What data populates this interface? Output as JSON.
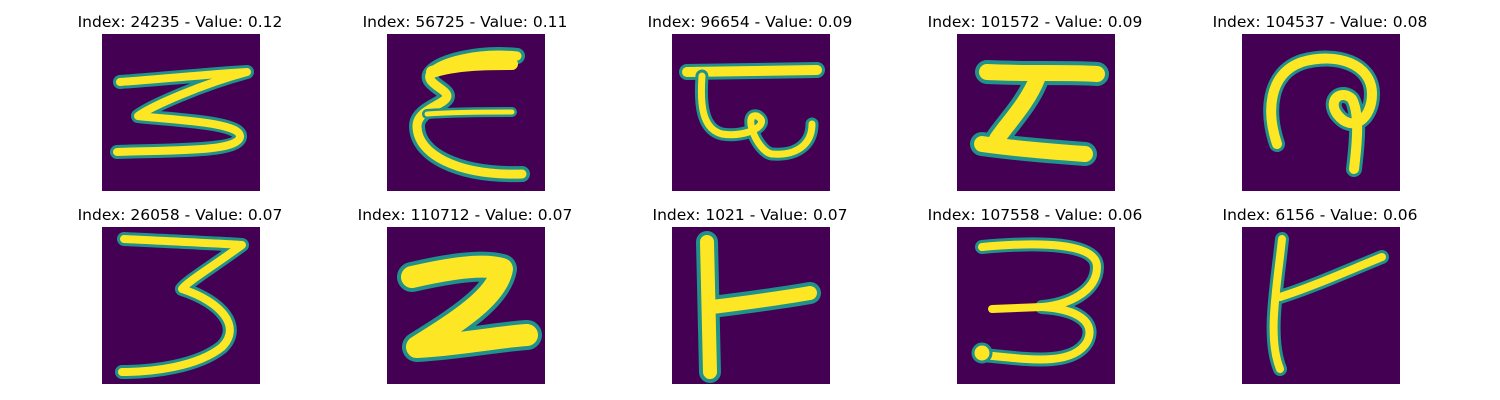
{
  "figure": {
    "colors": {
      "background": "#440154",
      "stroke": "#fde725",
      "edge": "#21918c"
    },
    "panels": [
      {
        "title": "Index: 24235 - Value: 0.12"
      },
      {
        "title": "Index: 56725 - Value: 0.11"
      },
      {
        "title": "Index: 96654 - Value: 0.09"
      },
      {
        "title": "Index: 101572 - Value: 0.09"
      },
      {
        "title": "Index: 104537 - Value: 0.08"
      },
      {
        "title": "Index: 26058 - Value: 0.07"
      },
      {
        "title": "Index: 110712 - Value: 0.07"
      },
      {
        "title": "Index: 1021 - Value: 0.07"
      },
      {
        "title": "Index: 107558 - Value: 0.06"
      },
      {
        "title": "Index: 6156 - Value: 0.06"
      }
    ]
  }
}
